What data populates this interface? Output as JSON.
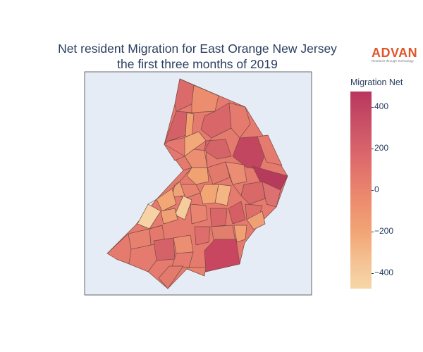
{
  "title": {
    "line1": "Net resident Migration for East Orange New Jersey",
    "line2": "the first three months of 2019"
  },
  "logo": {
    "word": "ADVAN",
    "tagline": "Research through Technology"
  },
  "colorbar": {
    "title": "Migration Net",
    "range": [
      -470,
      470
    ],
    "ticks": [
      "400",
      "200",
      "0",
      "−200",
      "−400"
    ],
    "colors": [
      "#f6d7a7",
      "#f5c597",
      "#f2a676",
      "#ec8a6e",
      "#df6d6c",
      "#cb5367",
      "#b9365e"
    ]
  },
  "colors": {
    "background_map": "#e5ecf6",
    "tract_border": "#7a4a42",
    "text": "#2a3f5f",
    "brand": "#e2542b"
  }
}
